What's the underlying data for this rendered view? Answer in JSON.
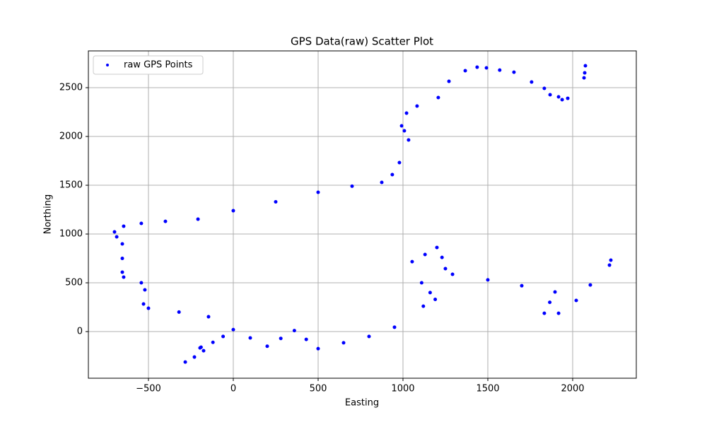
{
  "chart_data": {
    "type": "scatter",
    "title": "GPS Data(raw) Scatter Plot",
    "x_label": "Easting",
    "y_label": "Northing",
    "series": [
      {
        "name": "raw GPS Points",
        "color": "#0000ff",
        "x": [
          -283,
          -229,
          -196,
          -175,
          -190,
          -120,
          -60,
          0,
          100,
          200,
          280,
          360,
          430,
          500,
          650,
          800,
          950,
          1120,
          1190,
          1160,
          1110,
          1054,
          1130,
          1200,
          1230,
          1250,
          1292,
          1500,
          1700,
          1896,
          1865,
          1833,
          1917,
          2021,
          2104,
          2217,
          2225,
          -146,
          -320,
          -500,
          -529,
          -521,
          -542,
          -646,
          -654,
          -654,
          -654,
          -687,
          -700,
          -646,
          -542,
          -400,
          -208,
          0,
          250,
          500,
          700,
          875,
          937,
          979,
          1033,
          1008,
          992,
          1021,
          1083,
          1208,
          1271,
          1367,
          1437,
          1492,
          1570,
          1654,
          1758,
          1833,
          1867,
          1917,
          1938,
          1971,
          2075,
          2071,
          2067
        ],
        "y": [
          -312,
          -261,
          -167,
          -196,
          -160,
          -110,
          -50,
          20,
          -65,
          -150,
          -70,
          10,
          -80,
          -175,
          -115,
          -50,
          45,
          260,
          330,
          400,
          500,
          717,
          790,
          862,
          760,
          645,
          587,
          530,
          470,
          406,
          300,
          188,
          188,
          319,
          478,
          681,
          732,
          152,
          200,
          239,
          283,
          428,
          500,
          558,
          609,
          750,
          899,
          971,
          1022,
          1080,
          1109,
          1130,
          1152,
          1239,
          1330,
          1428,
          1490,
          1529,
          1609,
          1732,
          1964,
          2058,
          2109,
          2239,
          2312,
          2399,
          2565,
          2674,
          2710,
          2703,
          2680,
          2659,
          2558,
          2493,
          2428,
          2406,
          2377,
          2391,
          2725,
          2652,
          2601
        ]
      }
    ],
    "xlim": [
      -854,
      2375
    ],
    "ylim": [
      -478,
      2877
    ],
    "xticks": [
      {
        "value": -500,
        "label": "−500"
      },
      0,
      500,
      1000,
      1500,
      2000
    ],
    "yticks": [
      0,
      500,
      1000,
      1500,
      2000,
      2500
    ],
    "grid": true,
    "legend": "upper-left"
  }
}
